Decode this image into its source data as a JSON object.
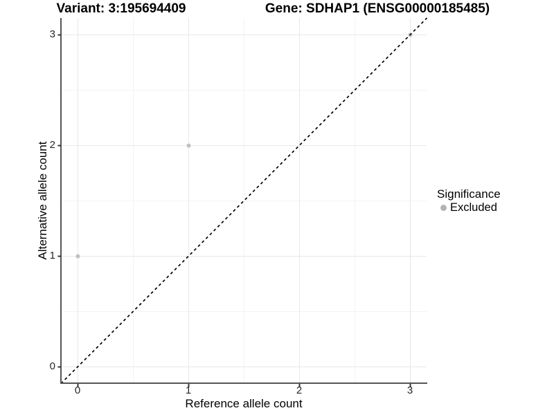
{
  "chart_data": {
    "type": "scatter",
    "titles": {
      "left": "Variant: 3:195694409",
      "right": "Gene: SDHAP1 (ENSG00000185485)"
    },
    "xlabel": "Reference allele count",
    "ylabel": "Alternative allele count",
    "x_ticks": [
      "0",
      "1",
      "2",
      "3"
    ],
    "y_ticks": [
      "0",
      "1",
      "2",
      "3"
    ],
    "xlim": [
      -0.15,
      3.15
    ],
    "ylim": [
      -0.15,
      3.15
    ],
    "grid": {
      "major": true,
      "minor": true,
      "major_color": "#e8e8e8",
      "minor_color": "#f3f3f3"
    },
    "series": [
      {
        "name": "Excluded",
        "color": "#c0c0c0",
        "marker": "circle",
        "points": [
          [
            0,
            1
          ],
          [
            1,
            2
          ],
          [
            3,
            3
          ]
        ]
      }
    ],
    "reference_line": {
      "kind": "identity y=x",
      "style": "dashed",
      "color": "#000000"
    },
    "legend": {
      "title": "Significance",
      "position": "right",
      "items": [
        {
          "label": "Excluded",
          "color": "#b3b3b3"
        }
      ]
    },
    "colors": {
      "axis_line": "#555555",
      "tick_mark": "#333333",
      "background": "#ffffff"
    }
  }
}
